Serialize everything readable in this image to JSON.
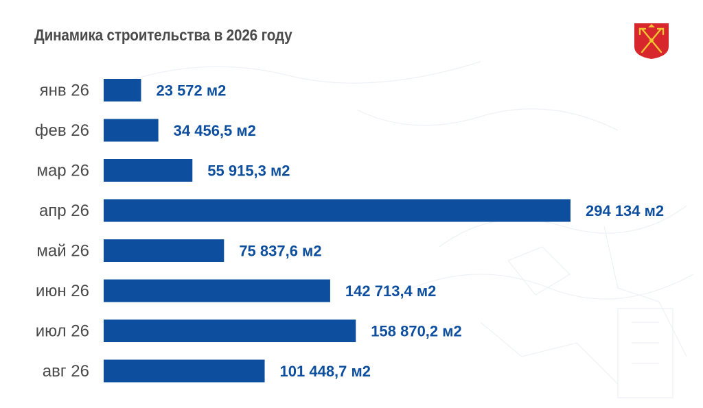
{
  "title": "Динамика строительства в 2026 году",
  "colors": {
    "bar": "#0d4f9e",
    "value_text": "#0d4f9e",
    "category_text": "#4a4a4a",
    "title_text": "#4a4a4a",
    "logo_red": "#d7262c",
    "logo_gold": "#f1c232"
  },
  "logo_icon": "city-coat-of-arms-icon",
  "chart_data": {
    "type": "bar",
    "orientation": "horizontal",
    "categories": [
      "янв 26",
      "фев 26",
      "мар 26",
      "апр 26",
      "май 26",
      "июн 26",
      "июл 26",
      "авг 26"
    ],
    "values": [
      23572,
      34456.5,
      55915.3,
      294134,
      75837.6,
      142713.4,
      158870.2,
      101448.7
    ],
    "value_labels": [
      "23 572 м2",
      "34 456,5 м2",
      "55 915,3 м2",
      "294 134 м2",
      "75 837,6 м2",
      "142 713,4 м2",
      "158 870,2 м2",
      "101 448,7 м2"
    ],
    "unit": "м2",
    "title": "Динамика строительства в 2026 году",
    "xlim": [
      0,
      294134
    ],
    "grid": false,
    "legend": "none"
  }
}
